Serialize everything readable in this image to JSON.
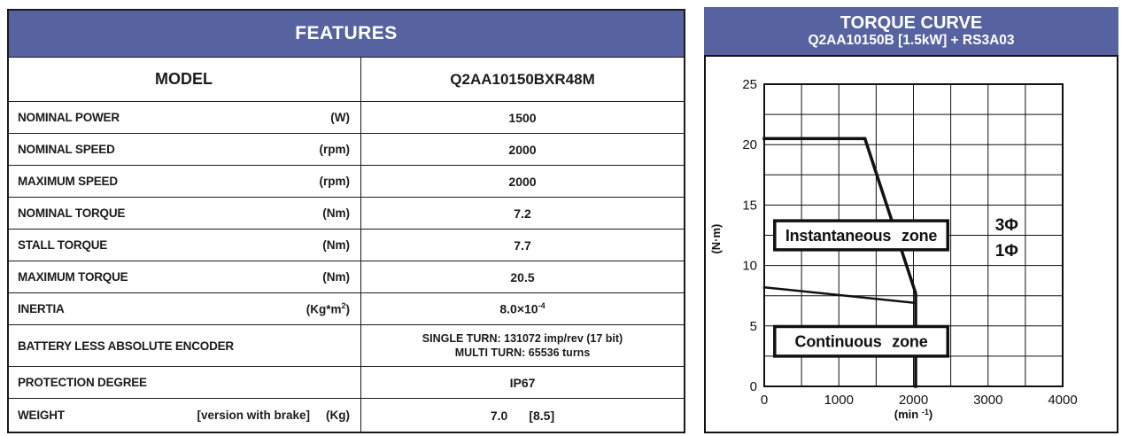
{
  "features_panel": {
    "title": "FEATURES",
    "model_row": {
      "label": "MODEL",
      "value": "Q2AA10150BXR48M"
    },
    "rows": [
      {
        "name": "NOMINAL POWER",
        "unit": "(W)",
        "value": "1500"
      },
      {
        "name": "NOMINAL SPEED",
        "unit": "(rpm)",
        "value": "2000"
      },
      {
        "name": "MAXIMUM SPEED",
        "unit": "(rpm)",
        "value": "2000"
      },
      {
        "name": "NOMINAL TORQUE",
        "unit": "(Nm)",
        "value": "7.2"
      },
      {
        "name": "STALL TORQUE",
        "unit": "(Nm)",
        "value": "7.7"
      },
      {
        "name": "MAXIMUM TORQUE",
        "unit": "(Nm)",
        "value": "20.5"
      },
      {
        "name": "INERTIA",
        "unit_base": "(Kg*m",
        "unit_sup": "2",
        "unit_close": ")",
        "value_base": "8.0×10",
        "value_sup": "-4"
      },
      {
        "name": "BATTERY LESS ABSOLUTE ENCODER",
        "value_line1": "SINGLE TURN: 131072 imp/rev (17 bit)",
        "value_line2": "MULTI TURN: 65536 turns"
      },
      {
        "name": "PROTECTION DEGREE",
        "value": "IP67"
      },
      {
        "name": "WEIGHT",
        "bracket": "[version with brake]",
        "unit": "(Kg)",
        "value": "7.0",
        "value2": "[8.5]"
      }
    ]
  },
  "torque_panel": {
    "title": "TORQUE CURVE",
    "subtitle": "Q2AA10150B [1.5kW] + RS3A03"
  },
  "chart_data": {
    "type": "line",
    "title": "TORQUE CURVE",
    "subtitle": "Q2AA10150B [1.5kW] + RS3A03",
    "xlabel_base": "(min ",
    "xlabel_sup": "-1",
    "xlabel_close": ")",
    "ylabel": "(N·m)",
    "xlim": [
      0,
      4000
    ],
    "ylim": [
      0,
      25
    ],
    "x_ticks": [
      0,
      1000,
      2000,
      3000,
      4000
    ],
    "y_ticks": [
      0,
      5,
      10,
      15,
      20,
      25
    ],
    "x_minor_step": 500,
    "y_minor_step": 2.5,
    "grid": true,
    "legend_position": "none",
    "series": [
      {
        "name": "instantaneous-limit",
        "points": [
          [
            0,
            20.5
          ],
          [
            1350,
            20.5
          ],
          [
            2030,
            7.7
          ],
          [
            2030,
            0
          ]
        ],
        "width": 3.5
      },
      {
        "name": "continuous-limit",
        "points": [
          [
            0,
            8.2
          ],
          [
            2030,
            6.9
          ],
          [
            2030,
            0
          ]
        ],
        "width": 2.5
      }
    ],
    "zone_boxes": [
      {
        "label": "Instantaneous zone",
        "x1": 140,
        "x2": 2460,
        "y1": 11.3,
        "y2": 13.7
      },
      {
        "label": "Continuous zone",
        "x1": 140,
        "x2": 2460,
        "y1": 2.5,
        "y2": 4.95
      }
    ],
    "annotations": [
      {
        "text": "3Φ",
        "x": 3250,
        "y": 13.4
      },
      {
        "text": "1Φ",
        "x": 3250,
        "y": 11.3
      }
    ],
    "colors": {
      "line": "#111111",
      "grid": "#111111",
      "background": "#ffffff"
    }
  },
  "colors": {
    "accent_blue": "#5663a0",
    "border": "#1a1a1a",
    "text": "#1b1b1b"
  }
}
